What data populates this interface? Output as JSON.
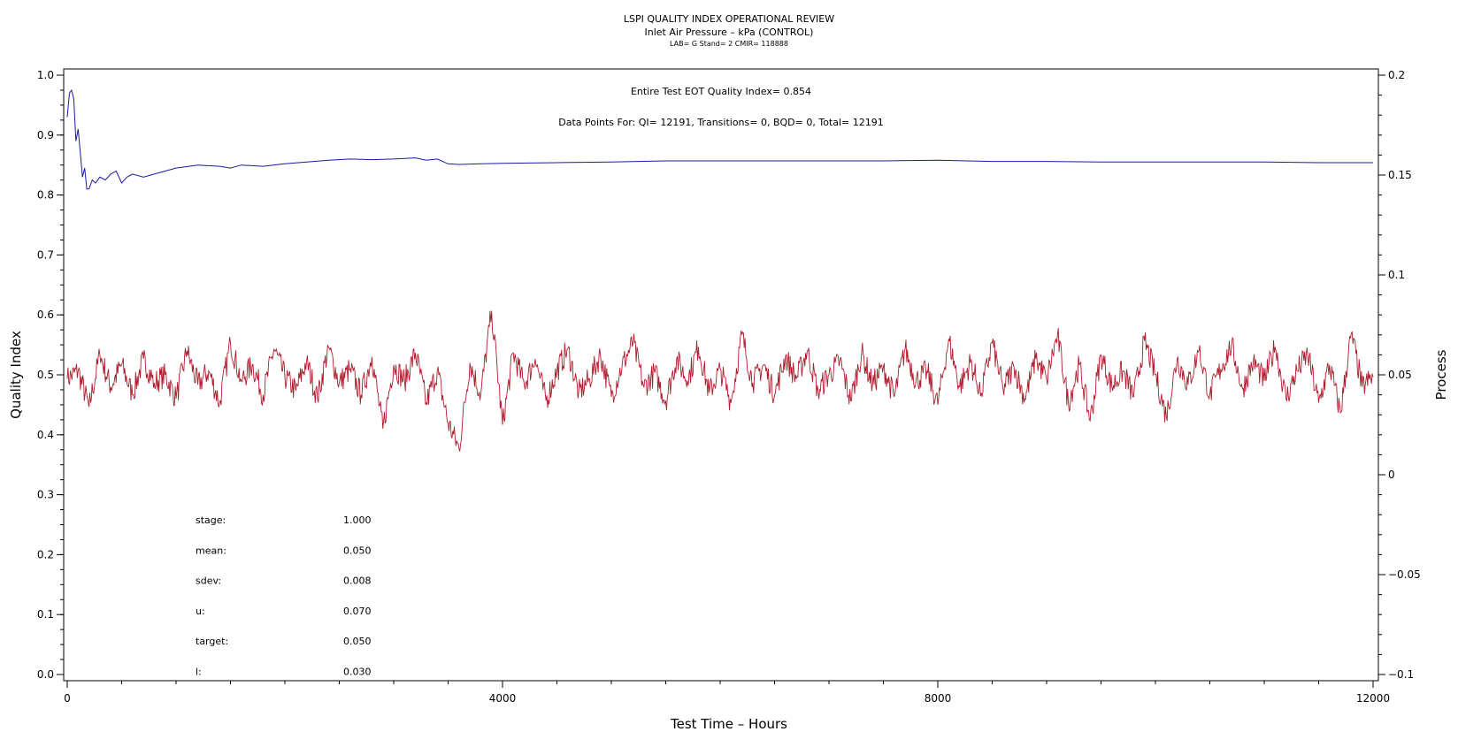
{
  "chart_data": {
    "type": "line",
    "title": "LSPI QUALITY INDEX OPERATIONAL REVIEW",
    "subtitle": "Inlet Air Pressure – kPa (CONTROL)",
    "subtitle2": "LAB= G Stand= 2 CMIR= 118888",
    "annotation1": "Entire Test EOT Quality Index=   0.854",
    "annotation2": "Data Points For: QI= 12191, Transitions=     0, BQD=     0, Total= 12191",
    "xlabel": "Test Time – Hours",
    "ylabel_left": "Quality Index",
    "ylabel_right": "Process",
    "xlim": [
      0,
      12000
    ],
    "ylim_left": [
      0.0,
      1.0
    ],
    "ylim_right": [
      -0.1,
      0.2
    ],
    "x_ticks": [
      "0",
      "4000",
      "8000",
      "12000"
    ],
    "y_left_ticks": [
      "0.0",
      "0.1",
      "0.2",
      "0.3",
      "0.4",
      "0.5",
      "0.6",
      "0.7",
      "0.8",
      "0.9",
      "1.0"
    ],
    "y_right_ticks": [
      "-0.1",
      "-0.05",
      "0",
      "0.05",
      "0.1",
      "0.15",
      "0.2"
    ],
    "colors": {
      "quality_index": "#1a1aa6",
      "process": "#b01c2e"
    },
    "series": [
      {
        "axis": "left",
        "x": [
          0,
          20,
          40,
          60,
          80,
          100,
          120,
          140,
          160,
          180,
          200,
          230,
          260,
          300,
          350,
          400,
          450,
          500,
          550,
          600,
          700,
          800,
          900,
          1000,
          1200,
          1400,
          1500,
          1600,
          1800,
          2000,
          2200,
          2400,
          2600,
          2800,
          3000,
          3200,
          3300,
          3400,
          3500,
          3600,
          3800,
          4000,
          4500,
          5000,
          5500,
          6000,
          6500,
          7000,
          7500,
          8000,
          8500,
          9000,
          9500,
          10000,
          10500,
          11000,
          11500,
          12000
        ],
        "values": [
          0.93,
          0.97,
          0.975,
          0.96,
          0.89,
          0.91,
          0.87,
          0.83,
          0.845,
          0.81,
          0.81,
          0.825,
          0.82,
          0.83,
          0.825,
          0.835,
          0.84,
          0.82,
          0.83,
          0.835,
          0.83,
          0.835,
          0.84,
          0.845,
          0.85,
          0.848,
          0.845,
          0.85,
          0.848,
          0.852,
          0.855,
          0.858,
          0.86,
          0.859,
          0.86,
          0.862,
          0.858,
          0.86,
          0.852,
          0.851,
          0.852,
          0.853,
          0.854,
          0.855,
          0.857,
          0.857,
          0.857,
          0.857,
          0.857,
          0.858,
          0.856,
          0.856,
          0.855,
          0.855,
          0.855,
          0.855,
          0.854,
          0.854
        ]
      },
      {
        "axis": "right",
        "mean": 0.05,
        "sdev": 0.008,
        "x": [
          0,
          100,
          200,
          300,
          400,
          500,
          600,
          700,
          800,
          900,
          1000,
          1100,
          1200,
          1300,
          1400,
          1500,
          1600,
          1700,
          1800,
          1900,
          2000,
          2100,
          2200,
          2300,
          2400,
          2500,
          2600,
          2700,
          2800,
          2900,
          3000,
          3100,
          3200,
          3300,
          3400,
          3500,
          3600,
          3700,
          3800,
          3900,
          4000,
          4100,
          4200,
          4300,
          4400,
          4500,
          4600,
          4700,
          4800,
          4900,
          5000,
          5100,
          5200,
          5300,
          5400,
          5500,
          5600,
          5700,
          5800,
          5900,
          6000,
          6100,
          6200,
          6300,
          6400,
          6500,
          6600,
          6700,
          6800,
          6900,
          7000,
          7100,
          7200,
          7300,
          7400,
          7500,
          7600,
          7700,
          7800,
          7900,
          8000,
          8100,
          8200,
          8300,
          8400,
          8500,
          8600,
          8700,
          8800,
          8900,
          9000,
          9100,
          9200,
          9300,
          9400,
          9500,
          9600,
          9700,
          9800,
          9900,
          10000,
          10100,
          10200,
          10300,
          10400,
          10500,
          10600,
          10700,
          10800,
          10900,
          11000,
          11100,
          11200,
          11300,
          11400,
          11500,
          11600,
          11700,
          11800,
          11900,
          12000
        ],
        "values": [
          0.048,
          0.052,
          0.034,
          0.06,
          0.044,
          0.055,
          0.04,
          0.058,
          0.046,
          0.05,
          0.038,
          0.062,
          0.045,
          0.052,
          0.036,
          0.066,
          0.047,
          0.055,
          0.04,
          0.063,
          0.049,
          0.042,
          0.057,
          0.038,
          0.064,
          0.046,
          0.053,
          0.04,
          0.059,
          0.023,
          0.055,
          0.047,
          0.061,
          0.036,
          0.052,
          0.026,
          0.013,
          0.056,
          0.04,
          0.082,
          0.025,
          0.061,
          0.045,
          0.058,
          0.037,
          0.052,
          0.063,
          0.041,
          0.048,
          0.06,
          0.039,
          0.055,
          0.066,
          0.044,
          0.051,
          0.037,
          0.058,
          0.047,
          0.064,
          0.041,
          0.053,
          0.036,
          0.07,
          0.046,
          0.055,
          0.04,
          0.059,
          0.048,
          0.062,
          0.042,
          0.05,
          0.057,
          0.037,
          0.061,
          0.045,
          0.054,
          0.039,
          0.063,
          0.047,
          0.052,
          0.035,
          0.068,
          0.044,
          0.056,
          0.041,
          0.066,
          0.043,
          0.054,
          0.038,
          0.058,
          0.048,
          0.07,
          0.036,
          0.055,
          0.027,
          0.06,
          0.044,
          0.052,
          0.039,
          0.067,
          0.05,
          0.029,
          0.058,
          0.045,
          0.062,
          0.04,
          0.053,
          0.065,
          0.043,
          0.057,
          0.047,
          0.064,
          0.038,
          0.052,
          0.06,
          0.036,
          0.055,
          0.031,
          0.071,
          0.044,
          0.049
        ]
      }
    ],
    "stats": [
      {
        "label": "stage:",
        "value": "1.000"
      },
      {
        "label": "mean:",
        "value": "0.050"
      },
      {
        "label": "sdev:",
        "value": "0.008"
      },
      {
        "label": "u:",
        "value": "0.070"
      },
      {
        "label": "target:",
        "value": "0.050"
      },
      {
        "label": "l:",
        "value": "0.030"
      }
    ]
  }
}
